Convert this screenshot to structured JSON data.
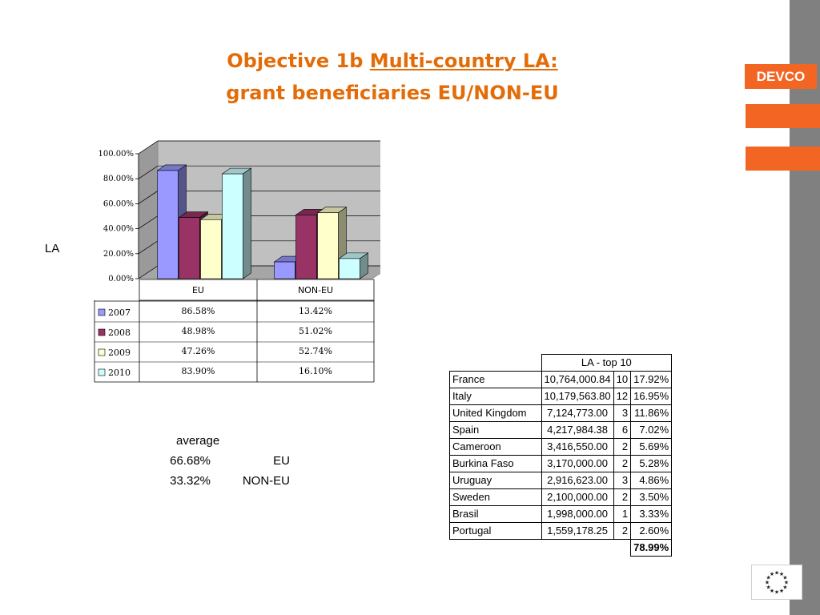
{
  "header": {
    "title_line1_prefix": "Objective 1b ",
    "title_line1_link": "Multi-country LA:",
    "title_line2": "grant beneficiaries EU/NON-EU"
  },
  "brand": {
    "label": "DEVCO",
    "accent": "#f26522"
  },
  "side_label": "LA",
  "chart_data": {
    "type": "bar",
    "categories": [
      "EU",
      "NON-EU"
    ],
    "series": [
      {
        "name": "2007",
        "values": [
          86.58,
          13.42
        ],
        "labels": [
          "86.58%",
          "13.42%"
        ],
        "color": "#9999ff"
      },
      {
        "name": "2008",
        "values": [
          48.98,
          51.02
        ],
        "labels": [
          "48.98%",
          "51.02%"
        ],
        "color": "#993366"
      },
      {
        "name": "2009",
        "values": [
          47.26,
          52.74
        ],
        "labels": [
          "47.26%",
          "52.74%"
        ],
        "color": "#ffffcc"
      },
      {
        "name": "2010",
        "values": [
          83.9,
          16.1
        ],
        "labels": [
          "83.90%",
          "16.10%"
        ],
        "color": "#ccffff"
      }
    ],
    "ylim": [
      0,
      100
    ],
    "yticks": [
      "0.00%",
      "20.00%",
      "40.00%",
      "60.00%",
      "80.00%",
      "100.00%"
    ],
    "grid": true,
    "three_d": true,
    "data_table": true
  },
  "average": {
    "heading": "average",
    "rows": [
      {
        "value": "66.68%",
        "label": "EU"
      },
      {
        "value": "33.32%",
        "label": "NON-EU"
      }
    ]
  },
  "top10": {
    "header": "LA - top 10",
    "rows": [
      {
        "country": "France",
        "amount": "10,764,000.84",
        "count": "10",
        "share": "17.92%"
      },
      {
        "country": "Italy",
        "amount": "10,179,563.80",
        "count": "12",
        "share": "16.95%"
      },
      {
        "country": "United Kingdom",
        "amount": "7,124,773.00",
        "count": "3",
        "share": "11.86%"
      },
      {
        "country": "Spain",
        "amount": "4,217,984.38",
        "count": "6",
        "share": "7.02%"
      },
      {
        "country": "Cameroon",
        "amount": "3,416,550.00",
        "count": "2",
        "share": "5.69%"
      },
      {
        "country": "Burkina Faso",
        "amount": "3,170,000.00",
        "count": "2",
        "share": "5.28%"
      },
      {
        "country": "Uruguay",
        "amount": "2,916,623.00",
        "count": "3",
        "share": "4.86%"
      },
      {
        "country": "Sweden",
        "amount": "2,100,000.00",
        "count": "2",
        "share": "3.50%"
      },
      {
        "country": "Brasil",
        "amount": "1,998,000.00",
        "count": "1",
        "share": "3.33%"
      },
      {
        "country": "Portugal",
        "amount": "1,559,178.25",
        "count": "2",
        "share": "2.60%"
      }
    ],
    "total": "78.99%"
  },
  "logo": {
    "icon": "eu-flag-icon"
  }
}
